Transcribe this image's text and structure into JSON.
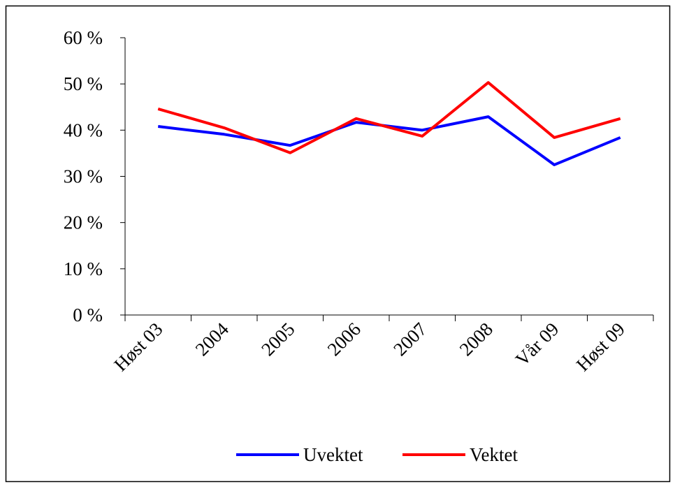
{
  "chart_data": {
    "type": "line",
    "categories": [
      "Høst 03",
      "2004",
      "2005",
      "2006",
      "2007",
      "2008",
      "Vår 09",
      "Høst 09"
    ],
    "series": [
      {
        "name": "Uvektet",
        "color": "#0000ff",
        "values": [
          40.8,
          39.1,
          36.7,
          41.7,
          40.0,
          42.9,
          32.5,
          38.4
        ]
      },
      {
        "name": "Vektet",
        "color": "#ff0000",
        "values": [
          44.6,
          40.5,
          35.1,
          42.5,
          38.7,
          50.3,
          38.4,
          42.5
        ]
      }
    ],
    "ylim": [
      0,
      60
    ],
    "yticks": [
      {
        "value": 0,
        "label": "0 %"
      },
      {
        "value": 10,
        "label": "10 %"
      },
      {
        "value": 20,
        "label": "20 %"
      },
      {
        "value": 30,
        "label": "30 %"
      },
      {
        "value": 40,
        "label": "40 %"
      },
      {
        "value": 50,
        "label": "50 %"
      },
      {
        "value": 60,
        "label": "60 %"
      }
    ],
    "grid": false,
    "legend": "bottom"
  }
}
